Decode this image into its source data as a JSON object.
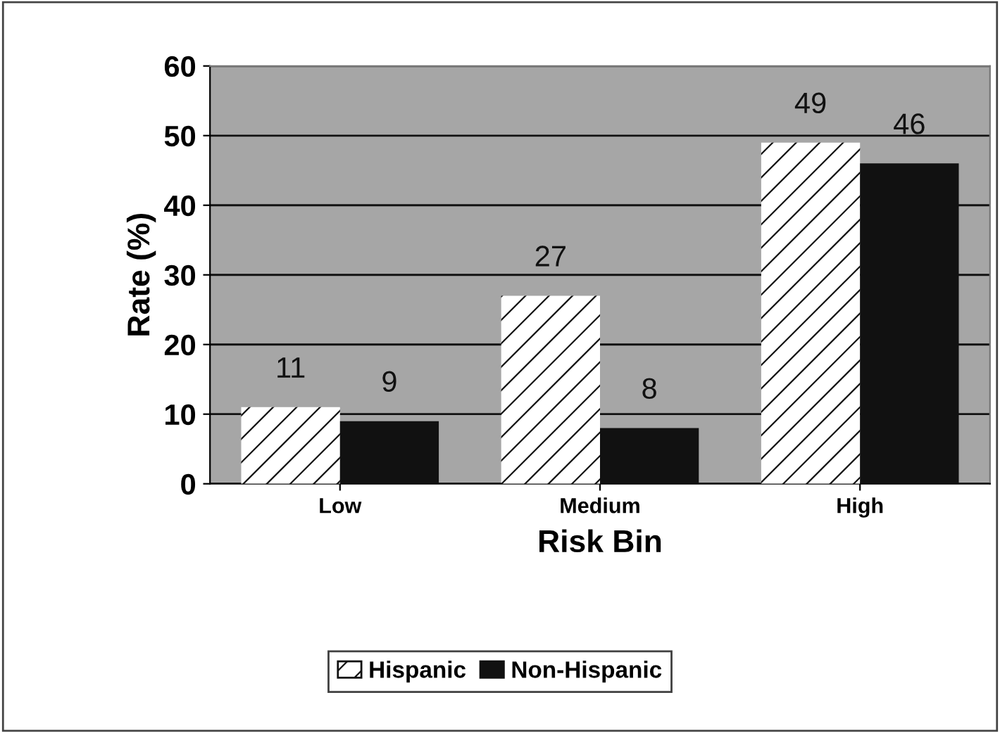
{
  "chart_data": {
    "type": "bar",
    "xlabel": "Risk Bin",
    "ylabel": "Rate (%)",
    "categories": [
      "Low",
      "Medium",
      "High"
    ],
    "series": [
      {
        "name": "Hispanic",
        "color": "#ffffff",
        "values": [
          11,
          27,
          49
        ]
      },
      {
        "name": "Non-Hispanic",
        "color": "#111111",
        "values": [
          9,
          8,
          46
        ]
      }
    ],
    "ylim": [
      0,
      60
    ],
    "yticks": [
      0,
      10,
      20,
      30,
      40,
      50,
      60
    ],
    "grid": "y",
    "legend": "bottom",
    "data_labels": true
  }
}
